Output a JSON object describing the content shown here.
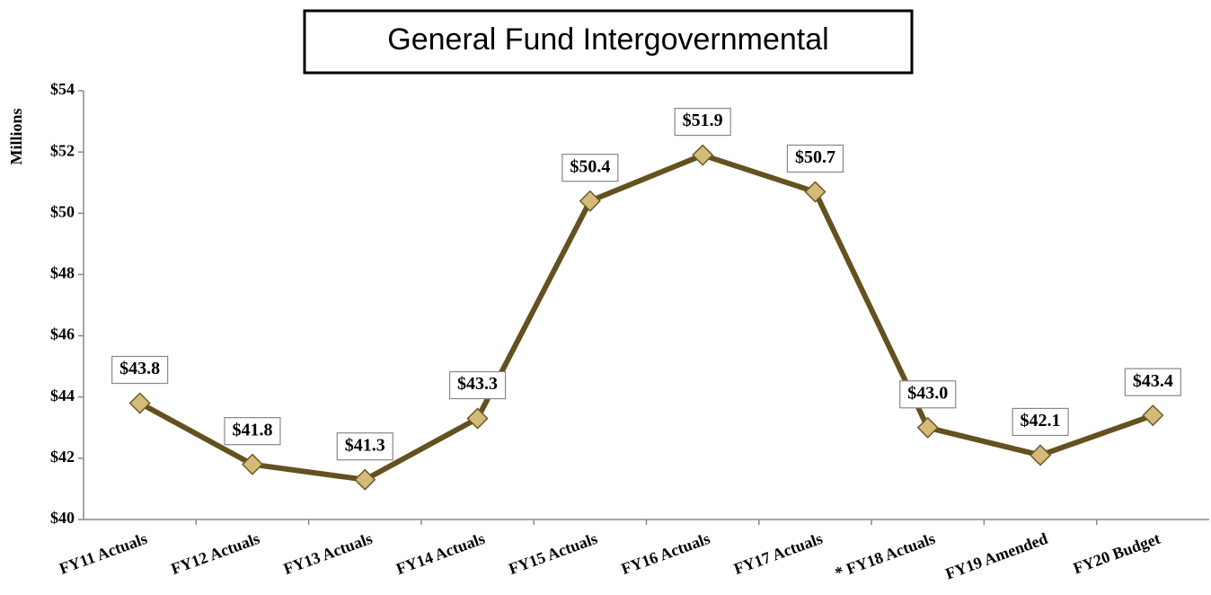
{
  "chart_data": {
    "type": "line",
    "title": "General Fund Intergovernmental",
    "y_label": "Millions",
    "categories": [
      "FY11 Actuals",
      "FY12 Actuals",
      "FY13 Actuals",
      "FY14 Actuals",
      "FY15 Actuals",
      "FY16 Actuals",
      "FY17 Actuals",
      "* FY18 Actuals",
      "FY19 Amended",
      "FY20 Budget"
    ],
    "values": [
      43.8,
      41.8,
      41.3,
      43.3,
      50.4,
      51.9,
      50.7,
      43.0,
      42.1,
      43.4
    ],
    "value_labels": [
      "$43.8",
      "$41.8",
      "$41.3",
      "$43.3",
      "$50.4",
      "$51.9",
      "$50.7",
      "$43.0",
      "$42.1",
      "$43.4"
    ],
    "color": "#63521f",
    "marker_color": "#d4bc78",
    "ylim": [
      40,
      54
    ],
    "yticks": [
      {
        "value": 40,
        "label": "$40"
      },
      {
        "value": 42,
        "label": "$42"
      },
      {
        "value": 44,
        "label": "$44"
      },
      {
        "value": 46,
        "label": "$46"
      },
      {
        "value": 48,
        "label": "$48"
      },
      {
        "value": 50,
        "label": "$50"
      },
      {
        "value": 52,
        "label": "$52"
      },
      {
        "value": 54,
        "label": "$54"
      }
    ],
    "grid": false
  }
}
